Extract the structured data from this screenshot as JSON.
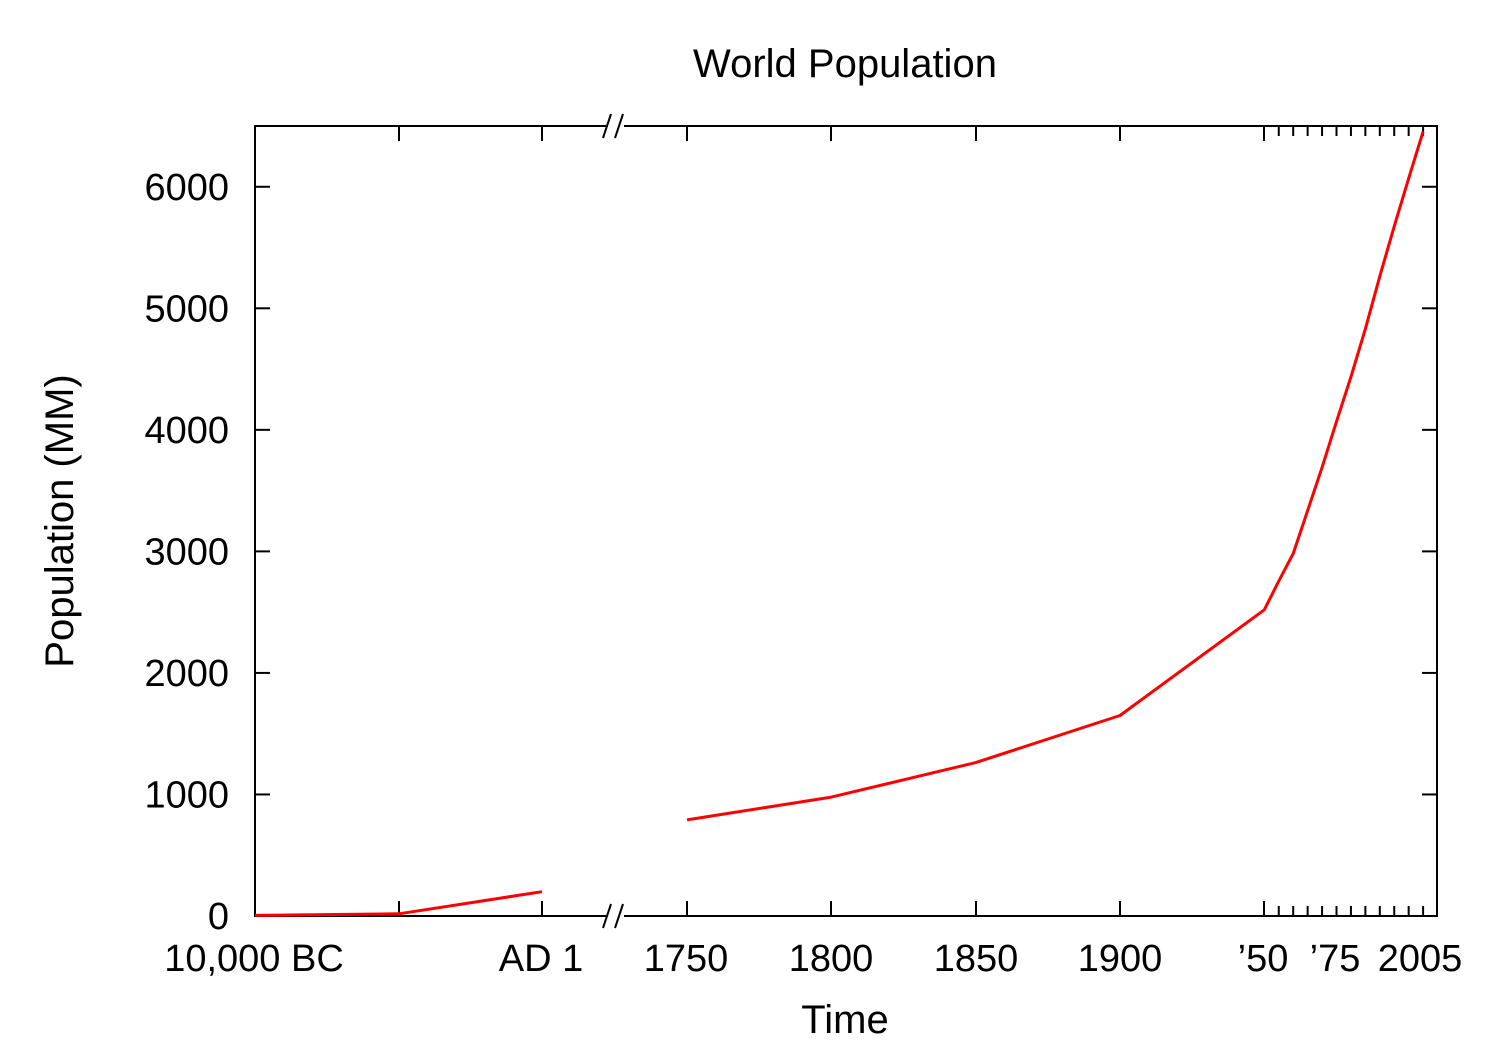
{
  "chart_data": {
    "type": "line",
    "title": "World Population",
    "xlabel": "Time",
    "ylabel": "Population (MM)",
    "ylim": [
      0,
      6500
    ],
    "y_ticks": [
      0,
      1000,
      2000,
      3000,
      4000,
      5000,
      6000
    ],
    "x_axis_break": "between AD 1 and 1750",
    "x_tick_labels": [
      "10,000 BC",
      "AD 1",
      "1750",
      "1800",
      "1850",
      "1900",
      "’50",
      "’75",
      "2005"
    ],
    "colors": {
      "series": "#ff0000",
      "axis": "#000000"
    },
    "grid": false,
    "legend": "none",
    "series": [
      {
        "segment": "ancient",
        "x": [
          "10,000 BC",
          "5,000 BC",
          "AD 1"
        ],
        "values": [
          5,
          18,
          200
        ]
      },
      {
        "segment": "modern",
        "x": [
          1750,
          1800,
          1850,
          1900,
          1950,
          1955,
          1960,
          1965,
          1970,
          1975,
          1980,
          1985,
          1990,
          1995,
          2000,
          2005
        ],
        "values": [
          791,
          978,
          1262,
          1650,
          2519,
          2756,
          2982,
          3335,
          3692,
          4068,
          4435,
          4831,
          5263,
          5674,
          6070,
          6454
        ]
      }
    ]
  }
}
